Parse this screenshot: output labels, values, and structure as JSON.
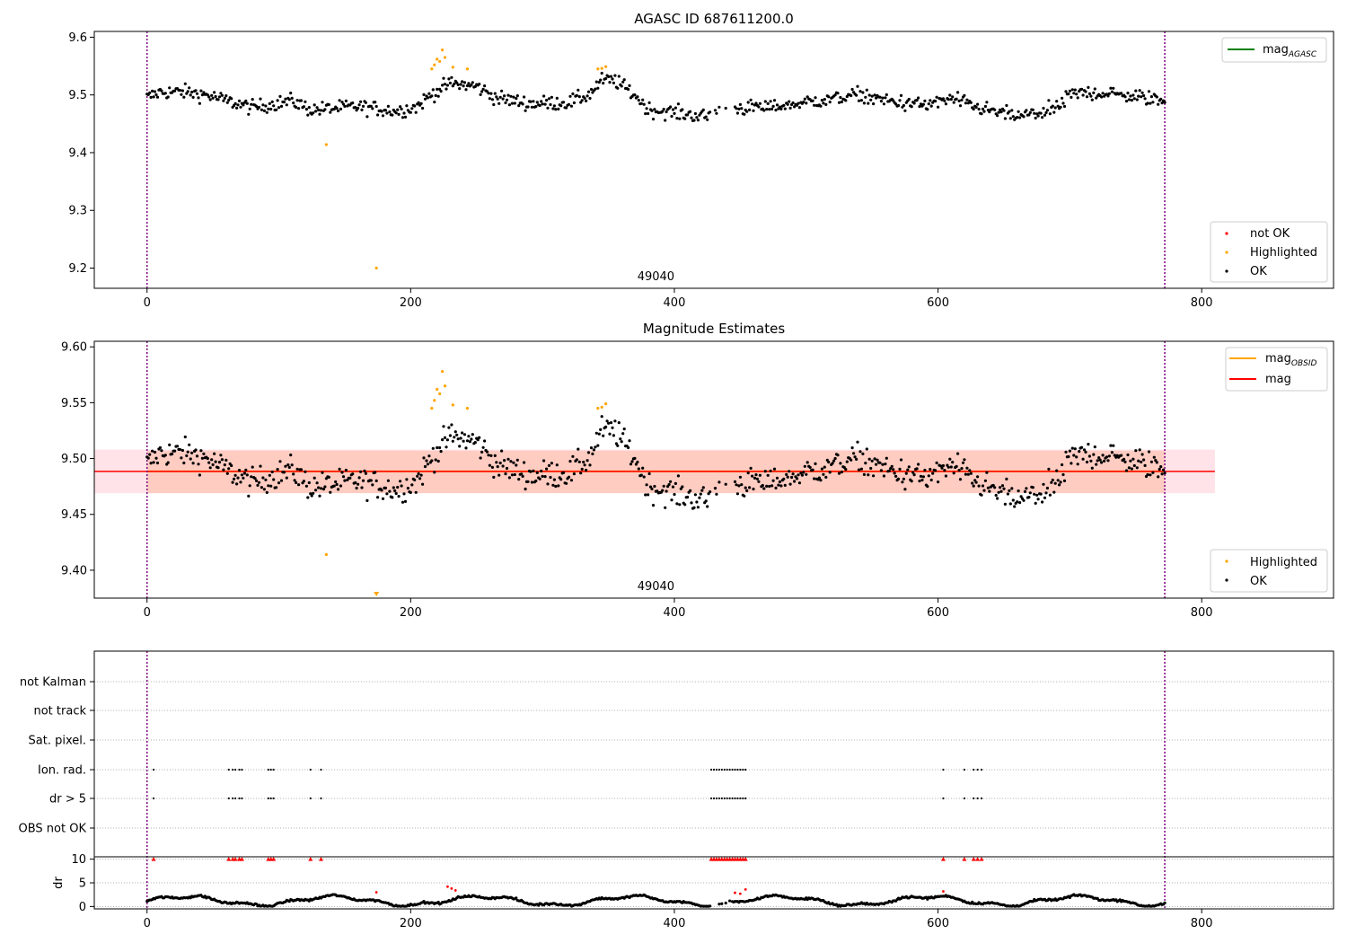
{
  "chart_data": [
    {
      "type": "scatter",
      "title": "AGASC ID 687611200.0",
      "xlabel": "",
      "ylabel": "",
      "xlim": [
        -40,
        900
      ],
      "ylim": [
        9.165,
        9.61
      ],
      "xticks": [
        0,
        200,
        400,
        600,
        800
      ],
      "yticks": [
        9.2,
        9.3,
        9.4,
        9.5,
        9.6
      ],
      "ytick_labels": [
        "9.2",
        "9.3",
        "9.4",
        "9.5",
        "9.6"
      ],
      "vlines": [
        0,
        772
      ],
      "annotation": {
        "text": "49040",
        "x": 386
      },
      "legend_top": {
        "position": "upper right",
        "entries": [
          {
            "name": "mag",
            "sub": "AGASC",
            "color": "#008000"
          }
        ]
      },
      "legend_bottom": {
        "position": "lower right",
        "entries": [
          {
            "name": "not OK",
            "color": "#ff0000"
          },
          {
            "name": "Highlighted",
            "color": "#ffa500"
          },
          {
            "name": "OK",
            "color": "#000000"
          }
        ]
      },
      "series": [
        {
          "name": "Highlighted",
          "color": "#ffa500",
          "points": [
            [
              136,
              9.414
            ],
            [
              174,
              9.2
            ],
            [
              216,
              9.545
            ],
            [
              218,
              9.552
            ],
            [
              220,
              9.562
            ],
            [
              222,
              9.558
            ],
            [
              224,
              9.578
            ],
            [
              226,
              9.565
            ],
            [
              232,
              9.548
            ],
            [
              243,
              9.545
            ],
            [
              342,
              9.545
            ],
            [
              345,
              9.546
            ],
            [
              348,
              9.549
            ]
          ]
        }
      ]
    },
    {
      "type": "scatter",
      "title": "Magnitude Estimates",
      "xlabel": "",
      "ylabel": "",
      "xlim": [
        -40,
        900
      ],
      "ylim": [
        9.375,
        9.605
      ],
      "xticks": [
        0,
        200,
        400,
        600,
        800
      ],
      "yticks": [
        9.4,
        9.45,
        9.5,
        9.55,
        9.6
      ],
      "ytick_labels": [
        "9.40",
        "9.45",
        "9.50",
        "9.55",
        "9.60"
      ],
      "vlines": [
        0,
        772
      ],
      "annotation": {
        "text": "49040",
        "x": 386
      },
      "mean_mag": 9.4885,
      "band_outer": [
        9.469,
        9.508
      ],
      "band_inner": [
        9.469,
        9.507
      ],
      "legend_top": {
        "position": "upper right",
        "entries": [
          {
            "name": "mag",
            "sub": "OBSID",
            "color": "#ffa500"
          },
          {
            "name": "mag",
            "sub": "",
            "color": "#ff0000"
          }
        ]
      },
      "legend_bottom": {
        "position": "lower right",
        "entries": [
          {
            "name": "Highlighted",
            "color": "#ffa500"
          },
          {
            "name": "OK",
            "color": "#000000"
          }
        ]
      },
      "series": [
        {
          "name": "Highlighted",
          "color": "#ffa500",
          "points": [
            [
              136,
              9.414
            ],
            [
              216,
              9.545
            ],
            [
              218,
              9.552
            ],
            [
              220,
              9.562
            ],
            [
              222,
              9.558
            ],
            [
              224,
              9.578
            ],
            [
              226,
              9.565
            ],
            [
              232,
              9.548
            ],
            [
              243,
              9.545
            ],
            [
              342,
              9.545
            ],
            [
              345,
              9.546
            ],
            [
              348,
              9.549
            ]
          ]
        }
      ],
      "clipped_points": [
        [
          174,
          9.376
        ]
      ]
    },
    {
      "type": "scatter",
      "title": "",
      "xlim": [
        -40,
        900
      ],
      "xticks": [
        0,
        200,
        400,
        600,
        800
      ],
      "vlines": [
        0,
        772
      ],
      "flag_categories": [
        "not Kalman",
        "not track",
        "Sat. pixel.",
        "Ion. rad.",
        "dr > 5",
        "OBS not OK"
      ],
      "flag_points": {
        "Ion. rad.": [
          5,
          62,
          65,
          67,
          70,
          72,
          92,
          94,
          96,
          124,
          132,
          428,
          430,
          432,
          434,
          436,
          438,
          440,
          442,
          444,
          446,
          448,
          450,
          452,
          454,
          604,
          620,
          627,
          630,
          633
        ],
        "dr > 5": [
          5,
          62,
          65,
          67,
          70,
          72,
          92,
          94,
          96,
          124,
          132,
          428,
          430,
          432,
          434,
          436,
          438,
          440,
          442,
          444,
          446,
          448,
          450,
          452,
          454,
          604,
          620,
          627,
          630,
          633
        ]
      },
      "dr": {
        "ylabel": "dr",
        "ylim": [
          -0.5,
          10.5
        ],
        "yticks": [
          0,
          5,
          10
        ],
        "ytick_labels": [
          "0",
          "5",
          "10"
        ],
        "cap_points": [
          5,
          62,
          65,
          67,
          70,
          72,
          92,
          94,
          96,
          124,
          132,
          428,
          430,
          432,
          434,
          436,
          438,
          440,
          442,
          444,
          446,
          448,
          450,
          452,
          454,
          604,
          620,
          627,
          630,
          633
        ],
        "red_points": [
          [
            174,
            3.0
          ],
          [
            228,
            4.2
          ],
          [
            231,
            3.8
          ],
          [
            234,
            3.4
          ],
          [
            446,
            2.9
          ],
          [
            450,
            2.7
          ],
          [
            454,
            3.6
          ],
          [
            604,
            3.2
          ]
        ]
      }
    }
  ]
}
